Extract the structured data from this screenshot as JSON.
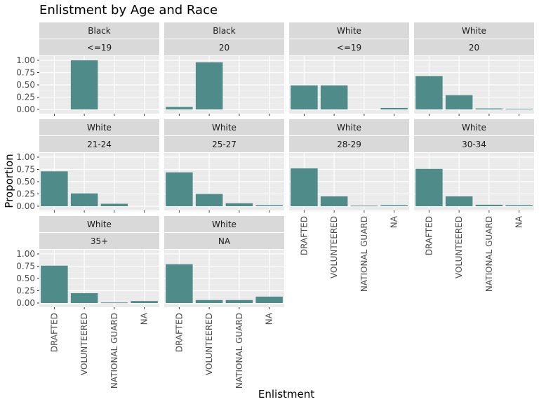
{
  "chart_data": {
    "type": "bar",
    "title": "Enlistment by Age and Race",
    "xlabel": "Enlistment",
    "ylabel": "Proportion",
    "categories": [
      "DRAFTED",
      "VOLUNTEERED",
      "NATIONAL GUARD",
      "NA"
    ],
    "ylim": [
      0,
      1
    ],
    "yticks": [
      "0.00",
      "0.25",
      "0.50",
      "0.75",
      "1.00"
    ],
    "bar_color": "#4f8b89",
    "panel_background": "#ebebeb",
    "strip_background": "#d9d9d9",
    "grid": true,
    "panels": [
      {
        "race": "Black",
        "age": "<=19",
        "values": [
          0.0,
          1.0,
          0.0,
          0.0
        ]
      },
      {
        "race": "Black",
        "age": "20",
        "values": [
          0.05,
          0.96,
          0.0,
          0.0
        ]
      },
      {
        "race": "White",
        "age": "<=19",
        "values": [
          0.49,
          0.49,
          0.0,
          0.03
        ]
      },
      {
        "race": "White",
        "age": "20",
        "values": [
          0.68,
          0.29,
          0.02,
          0.01
        ]
      },
      {
        "race": "White",
        "age": "21-24",
        "values": [
          0.71,
          0.26,
          0.05,
          0.0
        ]
      },
      {
        "race": "White",
        "age": "25-27",
        "values": [
          0.69,
          0.25,
          0.06,
          0.02
        ]
      },
      {
        "race": "White",
        "age": "28-29",
        "values": [
          0.77,
          0.2,
          0.01,
          0.02
        ]
      },
      {
        "race": "White",
        "age": "30-34",
        "values": [
          0.76,
          0.2,
          0.03,
          0.02
        ]
      },
      {
        "race": "White",
        "age": "35+",
        "values": [
          0.76,
          0.2,
          0.01,
          0.04
        ]
      },
      {
        "race": "White",
        "age": "NA",
        "values": [
          0.79,
          0.06,
          0.06,
          0.13
        ]
      }
    ]
  }
}
